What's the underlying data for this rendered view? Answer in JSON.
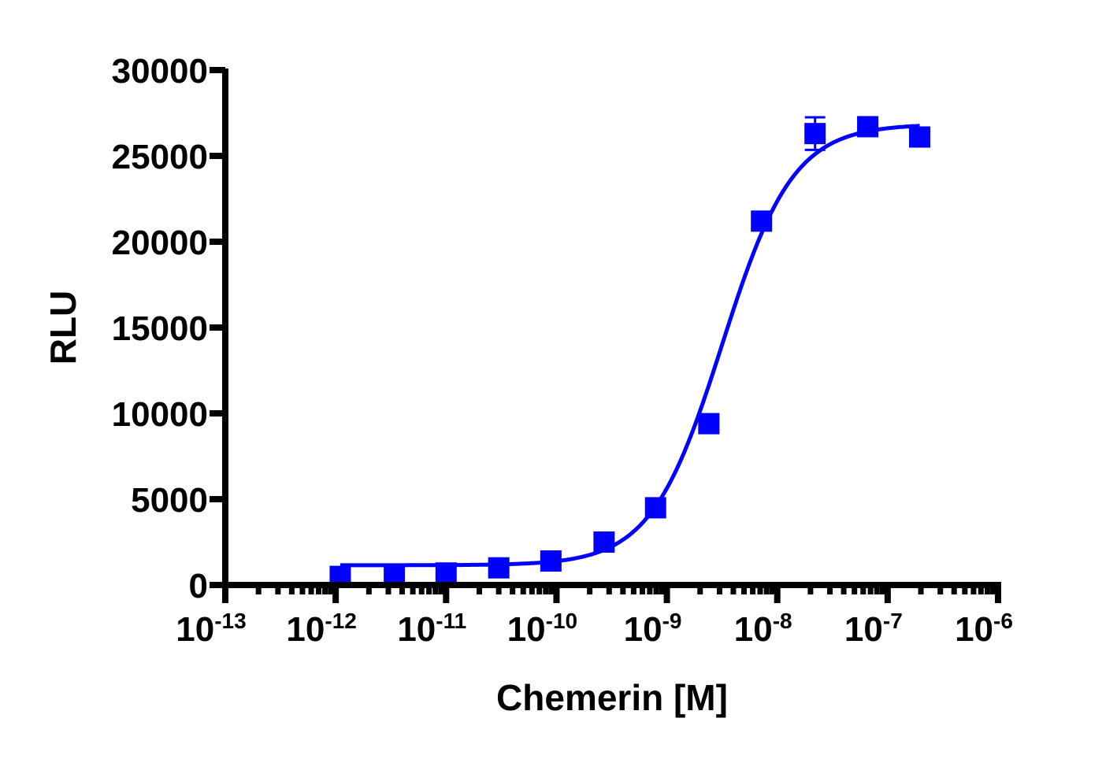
{
  "chart_data": {
    "type": "scatter",
    "title": "",
    "xlabel": "Chemerin [M]",
    "ylabel": "RLU",
    "xscale": "log",
    "xlim": [
      1e-13,
      1e-06
    ],
    "ylim": [
      0,
      30000
    ],
    "grid": false,
    "legend": null,
    "x_ticks": [
      {
        "base": "10",
        "exp": "-13",
        "value": 1e-13
      },
      {
        "base": "10",
        "exp": "-12",
        "value": 1e-12
      },
      {
        "base": "10",
        "exp": "-11",
        "value": 1e-11
      },
      {
        "base": "10",
        "exp": "-10",
        "value": 1e-10
      },
      {
        "base": "10",
        "exp": "-9",
        "value": 1e-09
      },
      {
        "base": "10",
        "exp": "-8",
        "value": 1e-08
      },
      {
        "base": "10",
        "exp": "-7",
        "value": 1e-07
      },
      {
        "base": "10",
        "exp": "-6",
        "value": 1e-06
      }
    ],
    "y_ticks": [
      0,
      5000,
      10000,
      15000,
      20000,
      25000,
      30000
    ],
    "series": [
      {
        "name": "Chemerin",
        "color": "#0000ff",
        "marker": "square",
        "points": [
          {
            "x": 1.1e-12,
            "y": 500,
            "err": 0
          },
          {
            "x": 3.4e-12,
            "y": 600,
            "err": 0
          },
          {
            "x": 1e-11,
            "y": 700,
            "err": 0
          },
          {
            "x": 3e-11,
            "y": 1000,
            "err": 0
          },
          {
            "x": 8.9e-11,
            "y": 1400,
            "err": 0
          },
          {
            "x": 2.7e-10,
            "y": 2500,
            "err": 0
          },
          {
            "x": 7.9e-10,
            "y": 4500,
            "err": 0
          },
          {
            "x": 2.4e-09,
            "y": 9400,
            "err": 0
          },
          {
            "x": 7.2e-09,
            "y": 21200,
            "err": 450
          },
          {
            "x": 2.2e-08,
            "y": 26300,
            "err": 950
          },
          {
            "x": 6.6e-08,
            "y": 26700,
            "err": 0
          },
          {
            "x": 1.95e-07,
            "y": 26100,
            "err": 0
          }
        ]
      }
    ],
    "fit_curve": {
      "type": "sigmoidal_dose_response",
      "color": "#0000ff",
      "bottom": 1150,
      "top": 26850,
      "log_ec50": -8.5,
      "hill_slope": 1.35,
      "x_range": [
        1.1e-12,
        1.95e-07
      ]
    }
  }
}
